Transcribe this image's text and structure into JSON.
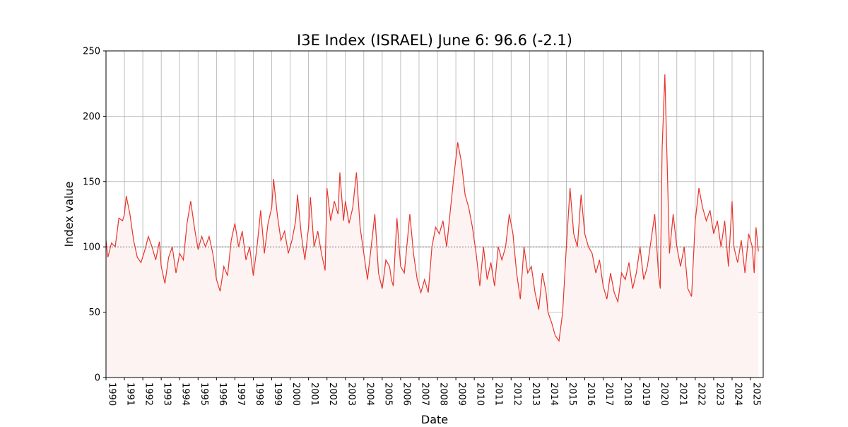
{
  "chart_data": {
    "type": "line",
    "title": "I3E Index (ISRAEL) June 6: 96.6 (-2.1)",
    "xlabel": "Date",
    "ylabel": "Index value",
    "x": [
      1990.0,
      1990.1,
      1990.3,
      1990.5,
      1990.7,
      1990.9,
      1991.0,
      1991.1,
      1991.3,
      1991.5,
      1991.7,
      1991.9,
      1992.1,
      1992.3,
      1992.5,
      1992.7,
      1992.9,
      1993.0,
      1993.2,
      1993.4,
      1993.6,
      1993.8,
      1994.0,
      1994.2,
      1994.4,
      1994.6,
      1994.8,
      1995.0,
      1995.2,
      1995.4,
      1995.6,
      1995.8,
      1996.0,
      1996.2,
      1996.4,
      1996.6,
      1996.8,
      1997.0,
      1997.2,
      1997.4,
      1997.6,
      1997.8,
      1998.0,
      1998.2,
      1998.4,
      1998.6,
      1998.8,
      1999.0,
      1999.1,
      1999.3,
      1999.5,
      1999.7,
      1999.9,
      2000.1,
      2000.3,
      2000.4,
      2000.6,
      2000.8,
      2001.0,
      2001.1,
      2001.3,
      2001.5,
      2001.7,
      2001.9,
      2002.0,
      2002.2,
      2002.4,
      2002.6,
      2002.7,
      2002.9,
      2003.0,
      2003.2,
      2003.4,
      2003.6,
      2003.8,
      2004.0,
      2004.2,
      2004.4,
      2004.6,
      2004.8,
      2005.0,
      2005.2,
      2005.4,
      2005.5,
      2005.6,
      2005.8,
      2006.0,
      2006.2,
      2006.4,
      2006.5,
      2006.7,
      2006.9,
      2007.1,
      2007.3,
      2007.5,
      2007.7,
      2007.9,
      2008.1,
      2008.3,
      2008.5,
      2008.7,
      2008.9,
      2009.1,
      2009.3,
      2009.5,
      2009.7,
      2009.9,
      2010.1,
      2010.3,
      2010.5,
      2010.7,
      2010.9,
      2011.1,
      2011.3,
      2011.5,
      2011.7,
      2011.9,
      2012.1,
      2012.3,
      2012.5,
      2012.7,
      2012.9,
      2013.1,
      2013.3,
      2013.5,
      2013.7,
      2013.9,
      2014.0,
      2014.2,
      2014.4,
      2014.6,
      2014.8,
      2015.0,
      2015.2,
      2015.4,
      2015.6,
      2015.8,
      2016.0,
      2016.2,
      2016.4,
      2016.6,
      2016.8,
      2017.0,
      2017.2,
      2017.4,
      2017.6,
      2017.8,
      2018.0,
      2018.2,
      2018.4,
      2018.6,
      2018.8,
      2019.0,
      2019.2,
      2019.4,
      2019.6,
      2019.8,
      2020.0,
      2020.1,
      2020.2,
      2020.35,
      2020.5,
      2020.6,
      2020.8,
      2021.0,
      2021.2,
      2021.4,
      2021.6,
      2021.8,
      2022.0,
      2022.2,
      2022.4,
      2022.6,
      2022.8,
      2023.0,
      2023.2,
      2023.4,
      2023.6,
      2023.8,
      2024.0,
      2024.1,
      2024.3,
      2024.5,
      2024.7,
      2024.9,
      2025.1,
      2025.2,
      2025.3,
      2025.43
    ],
    "series": [
      {
        "name": "I3E Index",
        "color": "#e8342c",
        "fill": "#fdf3f2",
        "values": [
          105,
          92,
          103,
          100,
          122,
          120,
          125,
          139,
          125,
          105,
          92,
          88,
          97,
          108,
          100,
          90,
          104,
          85,
          72,
          92,
          100,
          80,
          95,
          90,
          118,
          135,
          115,
          98,
          108,
          100,
          108,
          95,
          75,
          66,
          85,
          78,
          105,
          118,
          100,
          112,
          90,
          100,
          78,
          100,
          128,
          95,
          118,
          130,
          152,
          125,
          105,
          112,
          95,
          105,
          120,
          140,
          110,
          90,
          115,
          138,
          100,
          112,
          95,
          82,
          145,
          120,
          135,
          125,
          157,
          120,
          135,
          118,
          130,
          157,
          115,
          95,
          75,
          100,
          125,
          80,
          68,
          90,
          85,
          75,
          70,
          122,
          85,
          80,
          110,
          125,
          95,
          75,
          65,
          75,
          65,
          100,
          115,
          110,
          120,
          100,
          128,
          155,
          180,
          165,
          140,
          130,
          115,
          95,
          70,
          100,
          75,
          88,
          70,
          100,
          90,
          100,
          125,
          110,
          80,
          60,
          100,
          80,
          85,
          65,
          52,
          80,
          65,
          50,
          42,
          32,
          28,
          50,
          100,
          145,
          110,
          100,
          140,
          110,
          100,
          95,
          80,
          90,
          70,
          60,
          80,
          65,
          58,
          80,
          75,
          88,
          68,
          80,
          100,
          75,
          85,
          105,
          125,
          80,
          68,
          175,
          232,
          150,
          95,
          125,
          100,
          85,
          100,
          68,
          62,
          120,
          145,
          130,
          120,
          128,
          110,
          120,
          100,
          120,
          85,
          135,
          100,
          88,
          105,
          80,
          110,
          100,
          80,
          115,
          96.6
        ]
      }
    ],
    "reference_line": 100,
    "xlim": [
      1990,
      2025.69
    ],
    "ylim": [
      0,
      250
    ],
    "xticks": [
      1990,
      1991,
      1992,
      1993,
      1994,
      1995,
      1996,
      1997,
      1998,
      1999,
      2000,
      2001,
      2002,
      2003,
      2004,
      2005,
      2006,
      2007,
      2008,
      2009,
      2010,
      2011,
      2012,
      2013,
      2014,
      2015,
      2016,
      2017,
      2018,
      2019,
      2020,
      2021,
      2022,
      2023,
      2024,
      2025
    ],
    "yticks": [
      0,
      50,
      100,
      150,
      200,
      250
    ],
    "grid": true
  }
}
